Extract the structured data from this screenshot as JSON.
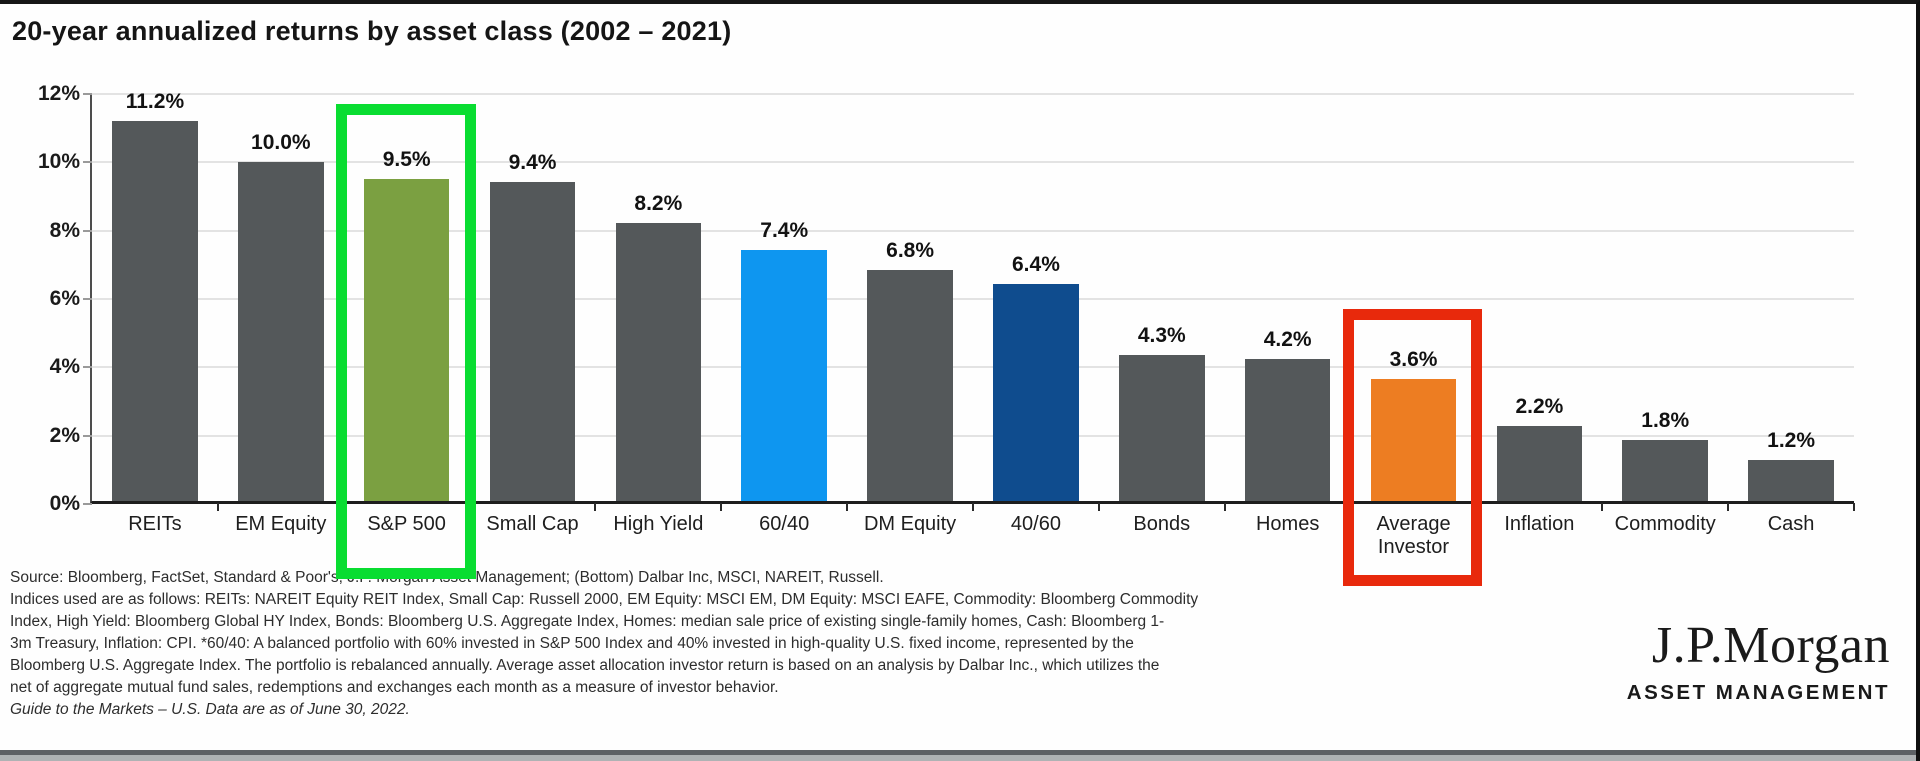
{
  "title": "20-year annualized returns by asset class (2002 – 2021)",
  "chart_data": {
    "type": "bar",
    "title": "20-year annualized returns by asset class (2002 – 2021)",
    "xlabel": "",
    "ylabel": "",
    "ylim": [
      0,
      12
    ],
    "grid": true,
    "legend": "none",
    "y_ticks": [
      {
        "label": "12%",
        "value": 12
      },
      {
        "label": "10%",
        "value": 10
      },
      {
        "label": "8%",
        "value": 8
      },
      {
        "label": "6%",
        "value": 6
      },
      {
        "label": "4%",
        "value": 4
      },
      {
        "label": "2%",
        "value": 2
      },
      {
        "label": "0%",
        "value": 0
      }
    ],
    "categories": [
      "REITs",
      "EM Equity",
      "S&P 500",
      "Small Cap",
      "High Yield",
      "60/40",
      "DM Equity",
      "40/60",
      "Bonds",
      "Homes",
      "Average Investor",
      "Inflation",
      "Commodity",
      "Cash"
    ],
    "values": [
      11.2,
      10.0,
      9.5,
      9.4,
      8.2,
      7.4,
      6.8,
      6.4,
      4.3,
      4.2,
      3.6,
      2.2,
      1.8,
      1.2
    ],
    "bars": [
      {
        "label": "REITs",
        "value": 11.2,
        "display": "11.2%",
        "color": "#54585A",
        "highlight": null
      },
      {
        "label": "EM Equity",
        "value": 10.0,
        "display": "10.0%",
        "color": "#54585A",
        "highlight": null
      },
      {
        "label": "S&P 500",
        "value": 9.5,
        "display": "9.5%",
        "color": "#7BA041",
        "highlight": "green"
      },
      {
        "label": "Small Cap",
        "value": 9.4,
        "display": "9.4%",
        "color": "#54585A",
        "highlight": null
      },
      {
        "label": "High Yield",
        "value": 8.2,
        "display": "8.2%",
        "color": "#54585A",
        "highlight": null
      },
      {
        "label": "60/40",
        "value": 7.4,
        "display": "7.4%",
        "color": "#0E96F0",
        "highlight": null
      },
      {
        "label": "DM Equity",
        "value": 6.8,
        "display": "6.8%",
        "color": "#54585A",
        "highlight": null
      },
      {
        "label": "40/60",
        "value": 6.4,
        "display": "6.4%",
        "color": "#0F4C8E",
        "highlight": null
      },
      {
        "label": "Bonds",
        "value": 4.3,
        "display": "4.3%",
        "color": "#54585A",
        "highlight": null
      },
      {
        "label": "Homes",
        "value": 4.2,
        "display": "4.2%",
        "color": "#54585A",
        "highlight": null
      },
      {
        "label": "Average Investor",
        "value": 3.6,
        "display": "3.6%",
        "color": "#ED7D22",
        "highlight": "red"
      },
      {
        "label": "Inflation",
        "value": 2.2,
        "display": "2.2%",
        "color": "#54585A",
        "highlight": null
      },
      {
        "label": "Commodity",
        "value": 1.8,
        "display": "1.8%",
        "color": "#54585A",
        "highlight": null
      },
      {
        "label": "Cash",
        "value": 1.2,
        "display": "1.2%",
        "color": "#54585A",
        "highlight": null
      }
    ]
  },
  "colors": {
    "bar_default": "#54585A",
    "sp500_green": "#7BA041",
    "blend_60_40_blue": "#0E96F0",
    "blend_40_60_navy": "#0F4C8E",
    "average_investor_orange": "#ED7D22",
    "highlight_green_box": "#09DD31",
    "highlight_red_box": "#E8290C",
    "gridline": "#E3E3E3"
  },
  "footnotes": {
    "lines": [
      {
        "text": "Source: Bloomberg, FactSet, Standard & Poor's, J.P. Morgan Asset Management; (Bottom) Dalbar Inc, MSCI, NAREIT, Russell.",
        "italic": false
      },
      {
        "text": "Indices used are as follows: REITs: NAREIT Equity REIT Index, Small Cap: Russell 2000, EM Equity: MSCI EM, DM Equity: MSCI EAFE, Commodity: Bloomberg Commodity",
        "italic": false
      },
      {
        "text": "Index, High Yield: Bloomberg Global HY Index, Bonds: Bloomberg U.S. Aggregate Index, Homes: median sale price of existing single-family homes, Cash: Bloomberg 1-",
        "italic": false
      },
      {
        "text": "3m Treasury, Inflation: CPI. *60/40: A balanced portfolio with 60% invested in S&P 500 Index and 40% invested in high-quality U.S. fixed income, represented by the",
        "italic": false
      },
      {
        "text": "Bloomberg U.S. Aggregate Index. The portfolio is rebalanced annually. Average asset allocation investor return is based on an analysis by Dalbar Inc., which utilizes the",
        "italic": false
      },
      {
        "text": "net of aggregate mutual fund sales, redemptions and exchanges each month as a measure of investor behavior.",
        "italic": false
      },
      {
        "text": "Guide to the Markets – U.S. Data are as of June 30, 2022.",
        "italic": true
      }
    ]
  },
  "logo": {
    "name": "J.P.Morgan",
    "division": "ASSET MANAGEMENT"
  }
}
